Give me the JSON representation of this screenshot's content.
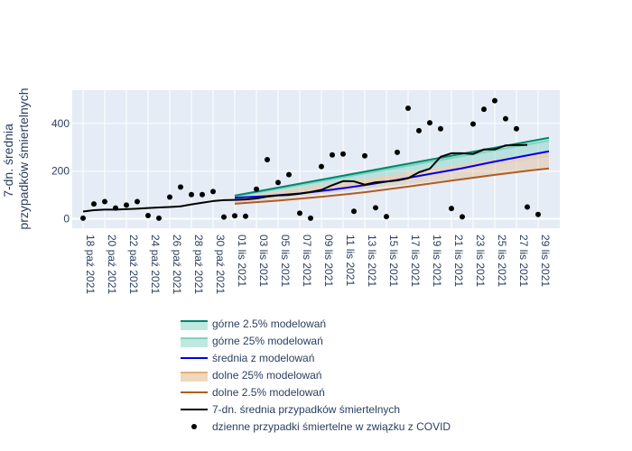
{
  "chart_data": {
    "type": "line",
    "ylabel_lines": [
      "7-dn. średnia",
      "przypadków śmiertelnych"
    ],
    "ylim": [
      -40,
      540
    ],
    "yticks": [
      0,
      200,
      400
    ],
    "x_range": [
      "2021-10-17",
      "2021-12-01"
    ],
    "xticks": [
      "2021-10-18",
      "2021-10-20",
      "2021-10-22",
      "2021-10-24",
      "2021-10-26",
      "2021-10-28",
      "2021-10-30",
      "2021-11-01",
      "2021-11-03",
      "2021-11-05",
      "2021-11-07",
      "2021-11-09",
      "2021-11-11",
      "2021-11-13",
      "2021-11-15",
      "2021-11-17",
      "2021-11-19",
      "2021-11-21",
      "2021-11-23",
      "2021-11-25",
      "2021-11-27",
      "2021-11-29"
    ],
    "xtick_labels": [
      "18 paź 2021",
      "20 paź 2021",
      "22 paź 2021",
      "24 paź 2021",
      "26 paź 2021",
      "28 paź 2021",
      "30 paź 2021",
      "01 lis 2021",
      "03 lis 2021",
      "05 lis 2021",
      "07 lis 2021",
      "09 lis 2021",
      "11 lis 2021",
      "13 lis 2021",
      "15 lis 2021",
      "17 lis 2021",
      "19 lis 2021",
      "21 lis 2021",
      "23 lis 2021",
      "25 lis 2021",
      "27 lis 2021",
      "29 lis 2021"
    ],
    "grid": true,
    "legend_position": "bottom",
    "colors": {
      "plot_bg": "#e5ecf6",
      "upper_2_5": "#00876c",
      "upper_25": "#7fd3c0",
      "mean": "#0000e6",
      "lower_25": "#e0b27a",
      "lower_2_5": "#b05c1e",
      "avg7": "#000000",
      "daily": "#000000"
    },
    "model": {
      "x": [
        "2021-11-01",
        "2021-11-30"
      ],
      "upper_2_5": [
        97,
        340
      ],
      "upper_25": [
        93,
        328
      ],
      "mean": [
        88,
        283
      ],
      "lower_25": [
        70,
        258
      ],
      "lower_2_5": [
        63,
        211
      ]
    },
    "model_mean_points": [
      [
        "2021-11-01",
        88
      ],
      [
        "2021-11-04",
        95
      ],
      [
        "2021-11-07",
        106
      ],
      [
        "2021-11-10",
        122
      ],
      [
        "2021-11-13",
        141
      ],
      [
        "2021-11-16",
        163
      ],
      [
        "2021-11-19",
        188
      ],
      [
        "2021-11-22",
        212
      ],
      [
        "2021-11-25",
        240
      ],
      [
        "2021-11-28",
        266
      ],
      [
        "2021-11-30",
        283
      ]
    ],
    "model_lower_2_5_points": [
      [
        "2021-11-01",
        63
      ],
      [
        "2021-11-05",
        76
      ],
      [
        "2021-11-09",
        92
      ],
      [
        "2021-11-13",
        111
      ],
      [
        "2021-11-17",
        135
      ],
      [
        "2021-11-21",
        160
      ],
      [
        "2021-11-25",
        184
      ],
      [
        "2021-11-28",
        201
      ],
      [
        "2021-11-30",
        211
      ]
    ],
    "avg7": {
      "x": [
        "2021-10-18",
        "2021-10-19",
        "2021-10-20",
        "2021-10-21",
        "2021-10-22",
        "2021-10-23",
        "2021-10-24",
        "2021-10-25",
        "2021-10-26",
        "2021-10-27",
        "2021-10-28",
        "2021-10-29",
        "2021-10-30",
        "2021-10-31",
        "2021-11-01",
        "2021-11-02",
        "2021-11-03",
        "2021-11-04",
        "2021-11-05",
        "2021-11-06",
        "2021-11-07",
        "2021-11-08",
        "2021-11-09",
        "2021-11-10",
        "2021-11-11",
        "2021-11-12",
        "2021-11-13",
        "2021-11-14",
        "2021-11-15",
        "2021-11-16",
        "2021-11-17",
        "2021-11-18",
        "2021-11-19",
        "2021-11-20",
        "2021-11-21",
        "2021-11-22",
        "2021-11-23",
        "2021-11-24",
        "2021-11-25",
        "2021-11-26",
        "2021-11-27",
        "2021-11-28"
      ],
      "y": [
        30,
        36,
        38,
        38,
        40,
        42,
        45,
        47,
        49,
        52,
        60,
        67,
        74,
        78,
        79,
        81,
        85,
        93,
        98,
        100,
        105,
        112,
        121,
        141,
        158,
        157,
        143,
        153,
        156,
        161,
        170,
        195,
        210,
        260,
        275,
        275,
        272,
        291,
        291,
        308,
        309,
        310
      ]
    },
    "daily": {
      "x": [
        "2021-10-18",
        "2021-10-19",
        "2021-10-20",
        "2021-10-21",
        "2021-10-22",
        "2021-10-23",
        "2021-10-24",
        "2021-10-25",
        "2021-10-26",
        "2021-10-27",
        "2021-10-28",
        "2021-10-29",
        "2021-10-30",
        "2021-10-31",
        "2021-11-01",
        "2021-11-02",
        "2021-11-03",
        "2021-11-04",
        "2021-11-05",
        "2021-11-06",
        "2021-11-07",
        "2021-11-08",
        "2021-11-09",
        "2021-11-10",
        "2021-11-11",
        "2021-11-12",
        "2021-11-13",
        "2021-11-14",
        "2021-11-15",
        "2021-11-16",
        "2021-11-17",
        "2021-11-18",
        "2021-11-19",
        "2021-11-20",
        "2021-11-21",
        "2021-11-22",
        "2021-11-23",
        "2021-11-24",
        "2021-11-25",
        "2021-11-26",
        "2021-11-27",
        "2021-11-28",
        "2021-11-29"
      ],
      "y": [
        2,
        62,
        72,
        45,
        57,
        72,
        13,
        2,
        91,
        133,
        101,
        101,
        114,
        7,
        12,
        10,
        124,
        248,
        152,
        185,
        23,
        2,
        219,
        268,
        272,
        31,
        264,
        46,
        9,
        279,
        464,
        370,
        403,
        378,
        43,
        8,
        398,
        460,
        496,
        420,
        378,
        49,
        18
      ]
    },
    "legend": [
      {
        "key": "upper_2_5",
        "label": "górne 2.5% modelowań",
        "kind": "band"
      },
      {
        "key": "upper_25",
        "label": "górne 25% modelowań",
        "kind": "band"
      },
      {
        "key": "mean",
        "label": "średnia z modelowań",
        "kind": "line"
      },
      {
        "key": "lower_25",
        "label": "dolne 25% modelowań",
        "kind": "band"
      },
      {
        "key": "lower_2_5",
        "label": "dolne 2.5% modelowań",
        "kind": "line"
      },
      {
        "key": "avg7",
        "label": "7-dn. średnia przypadków śmiertelnych",
        "kind": "line"
      },
      {
        "key": "daily",
        "label": "dzienne przypadki śmiertelne w związku z COVID",
        "kind": "marker"
      }
    ]
  }
}
